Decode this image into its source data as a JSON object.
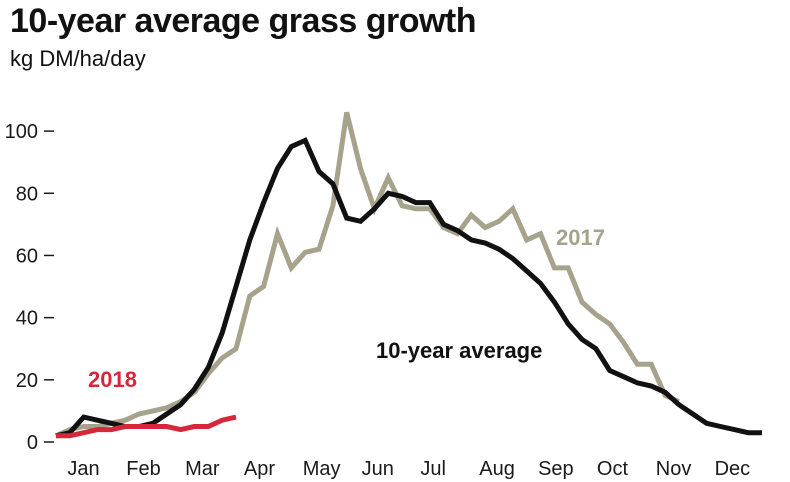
{
  "title": "10-year average grass growth",
  "subtitle": "kg DM/ha/day",
  "chart_data": {
    "type": "line",
    "title": "10-year average grass growth",
    "ylabel": "kg DM/ha/day",
    "xlabel": "",
    "x_unit": "week of year",
    "xlim": [
      1,
      52
    ],
    "ylim": [
      0,
      110
    ],
    "yticks": [
      0,
      20,
      40,
      60,
      80,
      100
    ],
    "months": [
      "Jan",
      "Feb",
      "Mar",
      "Apr",
      "May",
      "Jun",
      "Jul",
      "Aug",
      "Sep",
      "Oct",
      "Nov",
      "Dec"
    ],
    "grid": false,
    "series": [
      {
        "name": "10-year average",
        "color": "#111111",
        "x": [
          1,
          2,
          3,
          4,
          5,
          6,
          7,
          8,
          9,
          10,
          11,
          12,
          13,
          14,
          15,
          16,
          17,
          18,
          19,
          20,
          21,
          22,
          23,
          24,
          25,
          26,
          27,
          28,
          29,
          30,
          31,
          32,
          33,
          34,
          35,
          36,
          37,
          38,
          39,
          40,
          41,
          42,
          43,
          44,
          45,
          46,
          47,
          48,
          49,
          50,
          51,
          52
        ],
        "values": [
          2,
          3,
          8,
          7,
          6,
          5,
          5,
          6,
          9,
          12,
          17,
          24,
          35,
          50,
          65,
          77,
          88,
          95,
          97,
          87,
          83,
          72,
          71,
          75,
          80,
          79,
          77,
          77,
          70,
          68,
          65,
          64,
          62,
          59,
          55,
          51,
          45,
          38,
          33,
          30,
          23,
          21,
          19,
          18,
          16,
          12,
          9,
          6,
          5,
          4,
          3,
          3
        ]
      },
      {
        "name": "2017",
        "color": "#a7a28c",
        "x": [
          1,
          2,
          3,
          4,
          5,
          6,
          7,
          8,
          9,
          10,
          11,
          12,
          13,
          14,
          15,
          16,
          17,
          18,
          19,
          20,
          21,
          22,
          23,
          24,
          25,
          26,
          27,
          28,
          29,
          30,
          31,
          32,
          33,
          34,
          35,
          36,
          37,
          38,
          39,
          40,
          41,
          42,
          43,
          44,
          45,
          46
        ],
        "values": [
          2,
          4,
          5,
          5,
          6,
          7,
          9,
          10,
          11,
          13,
          16,
          22,
          27,
          30,
          47,
          50,
          67,
          56,
          61,
          62,
          76,
          106,
          88,
          75,
          85,
          76,
          75,
          75,
          69,
          67,
          73,
          69,
          71,
          75,
          65,
          67,
          56,
          56,
          45,
          41,
          38,
          32,
          25,
          25,
          15,
          13
        ]
      },
      {
        "name": "2018",
        "color": "#d6283a",
        "x": [
          1,
          2,
          3,
          4,
          5,
          6,
          7,
          8,
          9,
          10,
          11,
          12,
          13,
          14
        ],
        "values": [
          2,
          2,
          3,
          4,
          4,
          5,
          5,
          5,
          5,
          4,
          5,
          5,
          7,
          8
        ]
      }
    ]
  }
}
